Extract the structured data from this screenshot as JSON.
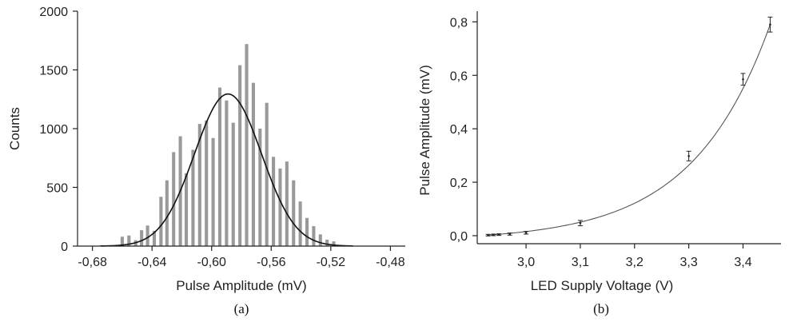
{
  "chart_data": [
    {
      "type": "bar",
      "xlabel": "Pulse Amplitude (mV)",
      "ylabel": "Counts",
      "caption": "(a)",
      "xlim": [
        -0.69,
        -0.47
      ],
      "ylim": [
        0,
        2000
      ],
      "xticks": [
        -0.68,
        -0.64,
        -0.6,
        -0.56,
        -0.52,
        -0.48
      ],
      "xtick_labels": [
        "-0,68",
        "-0,64",
        "-0,60",
        "-0,56",
        "-0,52",
        "-0,48"
      ],
      "yticks": [
        0,
        500,
        1000,
        1500,
        2000
      ],
      "ytick_labels": [
        "0",
        "500",
        "1000",
        "1500",
        "2000"
      ],
      "bar_color": "#999999",
      "bins": [
        {
          "x": -0.664,
          "value": 10
        },
        {
          "x": -0.66,
          "value": 80
        },
        {
          "x": -0.6555,
          "value": 90
        },
        {
          "x": -0.651,
          "value": 50
        },
        {
          "x": -0.647,
          "value": 135
        },
        {
          "x": -0.643,
          "value": 175
        },
        {
          "x": -0.6385,
          "value": 130
        },
        {
          "x": -0.634,
          "value": 420
        },
        {
          "x": -0.63,
          "value": 560
        },
        {
          "x": -0.6255,
          "value": 800
        },
        {
          "x": -0.621,
          "value": 935
        },
        {
          "x": -0.617,
          "value": 620
        },
        {
          "x": -0.6125,
          "value": 820
        },
        {
          "x": -0.608,
          "value": 1040
        },
        {
          "x": -0.6035,
          "value": 1070
        },
        {
          "x": -0.599,
          "value": 920
        },
        {
          "x": -0.5945,
          "value": 1350
        },
        {
          "x": -0.59,
          "value": 1240
        },
        {
          "x": -0.5855,
          "value": 1050
        },
        {
          "x": -0.581,
          "value": 1540
        },
        {
          "x": -0.5765,
          "value": 1720
        },
        {
          "x": -0.572,
          "value": 1390
        },
        {
          "x": -0.5675,
          "value": 1000
        },
        {
          "x": -0.563,
          "value": 1220
        },
        {
          "x": -0.5585,
          "value": 760
        },
        {
          "x": -0.554,
          "value": 660
        },
        {
          "x": -0.5495,
          "value": 720
        },
        {
          "x": -0.545,
          "value": 560
        },
        {
          "x": -0.5405,
          "value": 380
        },
        {
          "x": -0.536,
          "value": 240
        },
        {
          "x": -0.5315,
          "value": 170
        },
        {
          "x": -0.527,
          "value": 100
        },
        {
          "x": -0.5225,
          "value": 55
        },
        {
          "x": -0.518,
          "value": 40
        }
      ],
      "fit": {
        "type": "gaussian",
        "center": -0.589,
        "sigma": 0.0225,
        "peak": 1295,
        "line_color": "#111111"
      }
    },
    {
      "type": "scatter",
      "xlabel": "LED Supply Voltage (V)",
      "ylabel": "Pulse Amplitude (mV)",
      "caption": "(b)",
      "xlim": [
        2.91,
        3.47
      ],
      "ylim": [
        -0.03,
        0.84
      ],
      "xticks": [
        3.0,
        3.1,
        3.2,
        3.3,
        3.4
      ],
      "xtick_labels": [
        "3,0",
        "3,1",
        "3,2",
        "3,3",
        "3,4"
      ],
      "yticks": [
        0.0,
        0.2,
        0.4,
        0.6,
        0.8
      ],
      "ytick_labels": [
        "0,0",
        "0,2",
        "0,4",
        "0,6",
        "0,8"
      ],
      "points": [
        {
          "x": 2.93,
          "y": 0.002,
          "err": 0.003
        },
        {
          "x": 2.94,
          "y": 0.003,
          "err": 0.003
        },
        {
          "x": 2.95,
          "y": 0.004,
          "err": 0.003
        },
        {
          "x": 2.97,
          "y": 0.006,
          "err": 0.004
        },
        {
          "x": 3.0,
          "y": 0.011,
          "err": 0.005
        },
        {
          "x": 3.1,
          "y": 0.047,
          "err": 0.01
        },
        {
          "x": 3.3,
          "y": 0.298,
          "err": 0.018
        },
        {
          "x": 3.4,
          "y": 0.585,
          "err": 0.022
        },
        {
          "x": 3.45,
          "y": 0.79,
          "err": 0.028
        }
      ],
      "fit": {
        "type": "exponential",
        "x_start": 2.93,
        "x_end": 3.45,
        "line_color": "#555555"
      }
    }
  ]
}
